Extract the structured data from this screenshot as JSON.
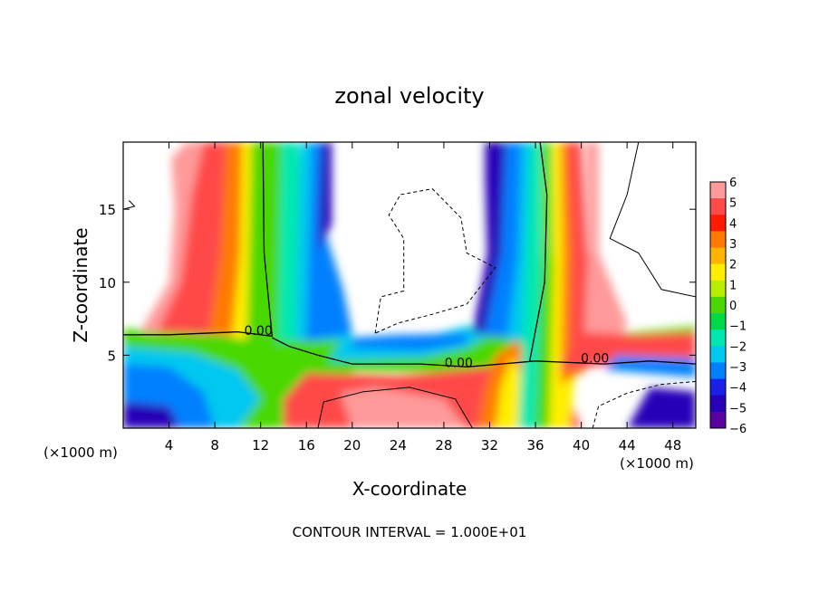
{
  "chart_data": {
    "type": "heatmap",
    "title": "zonal velocity",
    "xlabel": "X-coordinate",
    "ylabel": "Z-coordinate",
    "x_unit_left": "(×1000 m)",
    "x_unit_right": "(×1000 m)",
    "footer": "CONTOUR INTERVAL = 1.000E+01",
    "xlim": [
      0,
      50
    ],
    "ylim": [
      0,
      19.6
    ],
    "x_ticks": [
      4,
      8,
      12,
      16,
      20,
      24,
      28,
      32,
      36,
      40,
      44,
      48
    ],
    "x_tick_labels": [
      "4",
      "8",
      "12",
      "16",
      "20",
      "24",
      "28",
      "32",
      "36",
      "40",
      "44",
      "48"
    ],
    "y_ticks": [
      5,
      10,
      15
    ],
    "y_tick_labels": [
      "5",
      "10",
      "15"
    ],
    "colorbar": {
      "min": -6,
      "max": 6,
      "tick_values": [
        6,
        5,
        4,
        3,
        2,
        1,
        0,
        -1,
        -2,
        -3,
        -4,
        -5,
        -6
      ],
      "tick_labels": [
        "6",
        "5",
        "4",
        "3",
        "2",
        "1",
        "0",
        "−1",
        "−2",
        "−3",
        "−4",
        "−5",
        "−6"
      ],
      "colors": [
        "#ff9a9a",
        "#ff4a4a",
        "#ff1a00",
        "#ff7a00",
        "#ffb400",
        "#ffee00",
        "#b8ee00",
        "#4ad800",
        "#00d84a",
        "#00e8b0",
        "#00c8f0",
        "#0080ff",
        "#1a20e8",
        "#2800b8",
        "#5a00a0"
      ]
    },
    "contour_labels": [
      {
        "text": "0.00",
        "x": 11.8,
        "z": 6.7
      },
      {
        "text": "0.00",
        "x": 29.3,
        "z": 4.5
      },
      {
        "text": "0.00",
        "x": 41.2,
        "z": 4.8
      }
    ]
  }
}
